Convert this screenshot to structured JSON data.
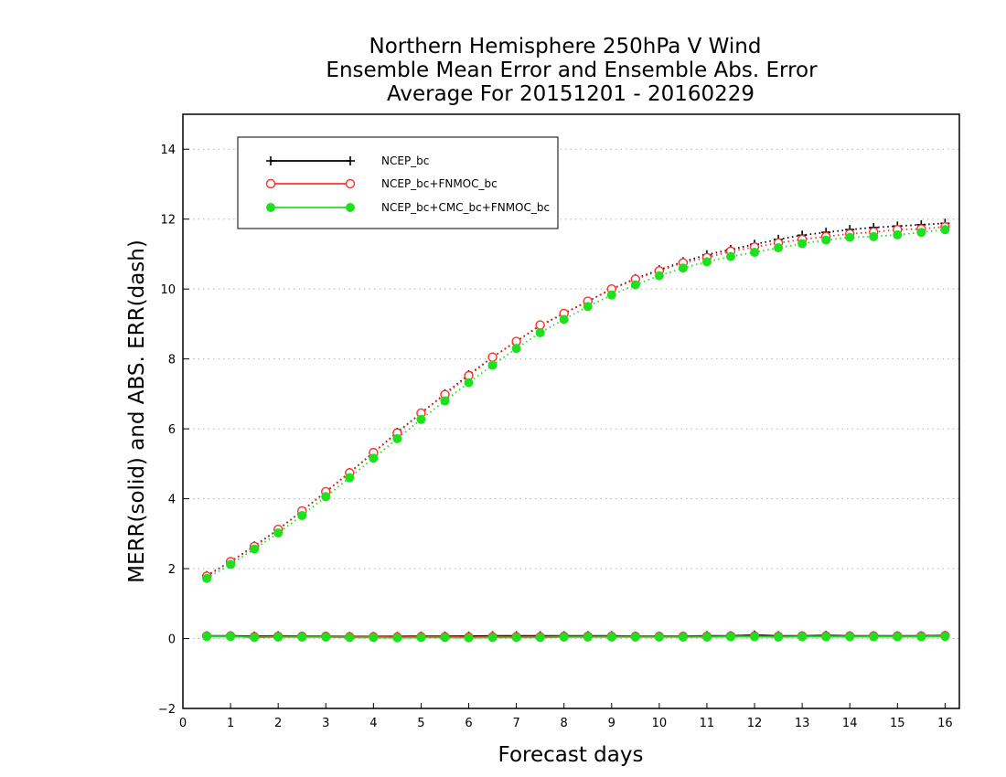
{
  "chart_data": {
    "type": "line",
    "title_lines": [
      "Northern Hemisphere 250hPa V Wind",
      "Ensemble Mean Error and Ensemble Abs. Error",
      "Average For 20151201 - 20160229"
    ],
    "xlabel": "Forecast days",
    "ylabel": "MERR(solid) and ABS. ERR(dash)",
    "xlim": [
      0,
      16.3
    ],
    "ylim": [
      -2,
      15
    ],
    "x_ticks": [
      0,
      1,
      2,
      3,
      4,
      5,
      6,
      7,
      8,
      9,
      10,
      11,
      12,
      13,
      14,
      15,
      16
    ],
    "y_ticks": [
      -2,
      0,
      2,
      4,
      6,
      8,
      10,
      12,
      14
    ],
    "grid": true,
    "legend_position": "top-left",
    "x": [
      0.5,
      1.0,
      1.5,
      2.0,
      2.5,
      3.0,
      3.5,
      4.0,
      4.5,
      5.0,
      5.5,
      6.0,
      6.5,
      7.0,
      7.5,
      8.0,
      8.5,
      9.0,
      9.5,
      10.0,
      10.5,
      11.0,
      11.5,
      12.0,
      12.5,
      13.0,
      13.5,
      14.0,
      14.5,
      15.0,
      15.5,
      16.0
    ],
    "series": [
      {
        "name": "NCEP_bc",
        "color": "#000000",
        "marker": "plus",
        "abs_err": [
          1.8,
          2.2,
          2.65,
          3.12,
          3.65,
          4.2,
          4.75,
          5.32,
          5.9,
          6.45,
          7.0,
          7.55,
          8.05,
          8.5,
          8.95,
          9.3,
          9.65,
          10.0,
          10.3,
          10.55,
          10.78,
          10.98,
          11.13,
          11.28,
          11.42,
          11.54,
          11.62,
          11.7,
          11.76,
          11.8,
          11.84,
          11.88
        ],
        "merr": [
          0.08,
          0.08,
          0.07,
          0.08,
          0.07,
          0.07,
          0.06,
          0.06,
          0.06,
          0.07,
          0.07,
          0.07,
          0.08,
          0.08,
          0.08,
          0.08,
          0.08,
          0.08,
          0.07,
          0.07,
          0.07,
          0.08,
          0.08,
          0.1,
          0.08,
          0.08,
          0.09,
          0.08,
          0.08,
          0.08,
          0.08,
          0.09
        ]
      },
      {
        "name": "NCEP_bc+FNMOC_bc",
        "color": "#ff3030",
        "marker": "open-circle",
        "abs_err": [
          1.78,
          2.2,
          2.63,
          3.12,
          3.65,
          4.2,
          4.74,
          5.32,
          5.88,
          6.45,
          6.98,
          7.52,
          8.05,
          8.5,
          8.97,
          9.3,
          9.65,
          10.0,
          10.28,
          10.52,
          10.75,
          10.9,
          11.08,
          11.2,
          11.32,
          11.42,
          11.5,
          11.58,
          11.63,
          11.7,
          11.72,
          11.78
        ],
        "merr": [
          0.07,
          0.07,
          0.05,
          0.06,
          0.06,
          0.06,
          0.05,
          0.05,
          0.04,
          0.05,
          0.05,
          0.04,
          0.05,
          0.05,
          0.05,
          0.06,
          0.06,
          0.06,
          0.06,
          0.06,
          0.06,
          0.06,
          0.07,
          0.07,
          0.06,
          0.07,
          0.07,
          0.07,
          0.07,
          0.07,
          0.07,
          0.08
        ]
      },
      {
        "name": "NCEP_bc+CMC_bc+FNMOC_bc",
        "color": "#1ee01e",
        "marker": "filled-circle",
        "abs_err": [
          1.72,
          2.12,
          2.56,
          3.02,
          3.52,
          4.06,
          4.6,
          5.16,
          5.72,
          6.27,
          6.8,
          7.32,
          7.82,
          8.3,
          8.75,
          9.13,
          9.5,
          9.83,
          10.12,
          10.38,
          10.6,
          10.78,
          10.93,
          11.05,
          11.18,
          11.3,
          11.4,
          11.48,
          11.5,
          11.55,
          11.62,
          11.7
        ],
        "merr": [
          0.06,
          0.06,
          0.03,
          0.04,
          0.04,
          0.04,
          0.03,
          0.03,
          0.02,
          0.03,
          0.03,
          0.02,
          0.03,
          0.03,
          0.03,
          0.04,
          0.04,
          0.04,
          0.04,
          0.04,
          0.04,
          0.04,
          0.05,
          0.05,
          0.04,
          0.05,
          0.05,
          0.05,
          0.05,
          0.05,
          0.05,
          0.06
        ]
      }
    ]
  }
}
